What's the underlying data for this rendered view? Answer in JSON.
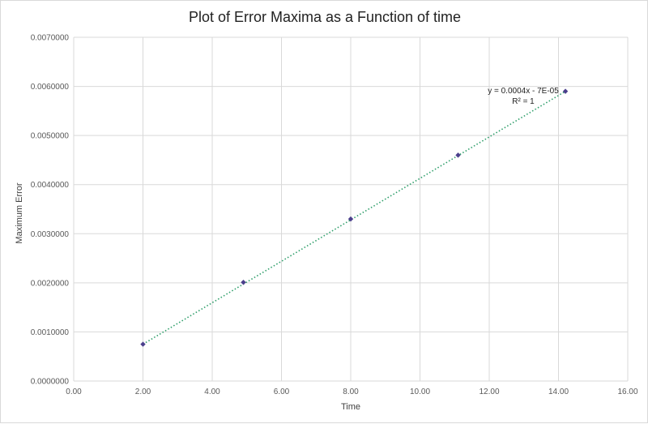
{
  "chart_data": {
    "type": "scatter",
    "title": "Plot of Error Maxima as a Function of time",
    "xlabel": "Time",
    "ylabel": "Maximum Error",
    "xlim": [
      0,
      16
    ],
    "ylim": [
      0,
      0.007
    ],
    "x_ticks": [
      0,
      2,
      4,
      6,
      8,
      10,
      12,
      14,
      16
    ],
    "y_ticks": [
      0,
      0.001,
      0.002,
      0.003,
      0.004,
      0.005,
      0.006,
      0.007
    ],
    "x_tick_labels": [
      "0.00",
      "2.00",
      "4.00",
      "6.00",
      "8.00",
      "10.00",
      "12.00",
      "14.00",
      "16.00"
    ],
    "y_tick_labels": [
      "0.0000000",
      "0.0010000",
      "0.0020000",
      "0.0030000",
      "0.0040000",
      "0.0050000",
      "0.0060000",
      "0.0070000"
    ],
    "grid": true,
    "series": [
      {
        "x": [
          2.0,
          4.9,
          8.0,
          11.1,
          14.2
        ],
        "y": [
          0.00075,
          0.00201,
          0.0033,
          0.0046,
          0.0059
        ],
        "color": "#4b3f8c",
        "marker": "diamond"
      }
    ],
    "trendline": {
      "type": "linear",
      "x_range": [
        2.0,
        14.2
      ],
      "y_range": [
        0.00075,
        0.0059
      ],
      "color": "#2e9e6a",
      "style": "dotted",
      "equation": "y = 0.0004x - 7E-05",
      "r_squared": "R² = 1"
    }
  }
}
